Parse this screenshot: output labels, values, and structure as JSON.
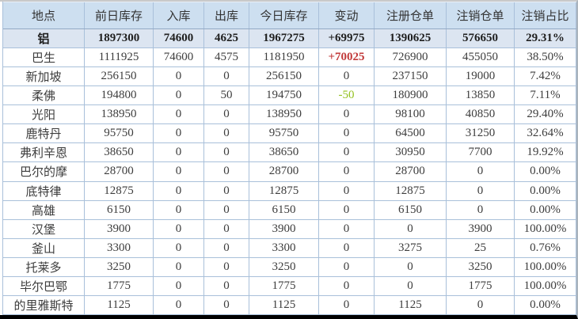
{
  "colors": {
    "positive_change": "#c23b3b",
    "negative_change": "#94c11f",
    "header_bg": "#cddff0",
    "summary_row_bg": "#dce5f1",
    "grid_border": "#a9c0da"
  },
  "table": {
    "columns": [
      "地点",
      "前日库存",
      "入库",
      "出库",
      "今日库存",
      "变动",
      "注册仓单",
      "注销仓单",
      "注销占比"
    ],
    "rows": [
      {
        "summary": true,
        "cells": [
          "铝",
          "1897300",
          "74600",
          "4625",
          "1967275",
          "+69975",
          "1390625",
          "576650",
          "29.31%"
        ]
      },
      {
        "summary": false,
        "cells": [
          "巴生",
          "1111925",
          "74600",
          "4575",
          "1181950",
          "+70025",
          "726900",
          "455050",
          "38.50%"
        ]
      },
      {
        "summary": false,
        "cells": [
          "新加坡",
          "256150",
          "0",
          "0",
          "256150",
          "0",
          "237150",
          "19000",
          "7.42%"
        ]
      },
      {
        "summary": false,
        "cells": [
          "柔佛",
          "194800",
          "0",
          "50",
          "194750",
          "-50",
          "180900",
          "13850",
          "7.11%"
        ]
      },
      {
        "summary": false,
        "cells": [
          "光阳",
          "138950",
          "0",
          "0",
          "138950",
          "0",
          "98100",
          "40850",
          "29.40%"
        ]
      },
      {
        "summary": false,
        "cells": [
          "鹿特丹",
          "95750",
          "0",
          "0",
          "95750",
          "0",
          "64500",
          "31250",
          "32.64%"
        ]
      },
      {
        "summary": false,
        "cells": [
          "弗利辛恩",
          "38650",
          "0",
          "0",
          "38650",
          "0",
          "30950",
          "7700",
          "19.92%"
        ]
      },
      {
        "summary": false,
        "cells": [
          "巴尔的摩",
          "28700",
          "0",
          "0",
          "28700",
          "0",
          "28700",
          "0",
          "0.00%"
        ]
      },
      {
        "summary": false,
        "cells": [
          "底特律",
          "12875",
          "0",
          "0",
          "12875",
          "0",
          "12875",
          "0",
          "0.00%"
        ]
      },
      {
        "summary": false,
        "cells": [
          "高雄",
          "6150",
          "0",
          "0",
          "6150",
          "0",
          "6150",
          "0",
          "0.00%"
        ]
      },
      {
        "summary": false,
        "cells": [
          "汉堡",
          "3900",
          "0",
          "0",
          "3900",
          "0",
          "0",
          "3900",
          "100.00%"
        ]
      },
      {
        "summary": false,
        "cells": [
          "釜山",
          "3300",
          "0",
          "0",
          "3300",
          "0",
          "3275",
          "25",
          "0.76%"
        ]
      },
      {
        "summary": false,
        "cells": [
          "托莱多",
          "3250",
          "0",
          "0",
          "3250",
          "0",
          "0",
          "3250",
          "100.00%"
        ]
      },
      {
        "summary": false,
        "cells": [
          "毕尔巴鄂",
          "1775",
          "0",
          "0",
          "1775",
          "0",
          "0",
          "1775",
          "100.00%"
        ]
      },
      {
        "summary": false,
        "cells": [
          "的里雅斯特",
          "1125",
          "0",
          "0",
          "1125",
          "0",
          "1125",
          "0",
          "0.00%"
        ]
      }
    ]
  }
}
